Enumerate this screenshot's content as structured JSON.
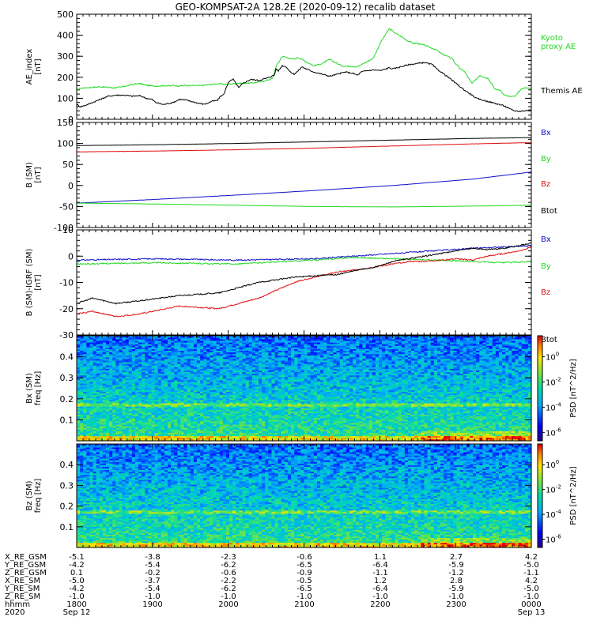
{
  "title": "GEO-KOMPSAT-2A 128.2E (2020-09-12) recalib dataset",
  "time_ticks": [
    "1800",
    "1900",
    "2000",
    "2100",
    "2200",
    "2300",
    "0000"
  ],
  "colors": {
    "black": "#000000",
    "green": "#22d822",
    "blue": "#1010c8",
    "red": "#e01010"
  },
  "chart_data": [
    {
      "type": "line",
      "ylabel": [
        "AE_index",
        "[nT]"
      ],
      "ylim": [
        0,
        500
      ],
      "yticks": [
        "0",
        "100",
        "200",
        "300",
        "400",
        "500"
      ],
      "series": [
        {
          "name": "Kyoto proxy AE",
          "color": "green",
          "x": [
            0,
            5,
            10,
            20,
            30,
            45,
            55,
            70,
            78,
            82,
            88,
            100,
            110,
            115,
            118,
            122,
            125,
            128,
            130,
            135,
            138,
            140,
            145,
            155,
            160,
            170,
            178,
            182,
            186,
            192,
            200,
            205,
            210,
            220,
            225,
            235,
            240,
            248,
            252,
            260,
            275,
            280,
            292,
            300,
            310,
            320,
            335,
            355,
            375,
            385,
            395,
            398,
            402,
            410,
            418,
            425,
            432,
            440,
            445,
            455,
            462,
            470,
            475,
            478,
            485,
            490,
            500,
            505,
            510,
            515,
            520,
            525,
            528,
            530,
            535,
            540,
            545,
            550,
            555,
            560,
            565,
            575
          ],
          "y": [
            140,
            148,
            150,
            152,
            155,
            150,
            152,
            165,
            170,
            168,
            162,
            158,
            160,
            160,
            158,
            162,
            160,
            158,
            160,
            160,
            162,
            160,
            160,
            160,
            162,
            165,
            170,
            168,
            166,
            168,
            170,
            172,
            170,
            172,
            175,
            180,
            185,
            195,
            250,
            300,
            285,
            295,
            270,
            255,
            265,
            285,
            255,
            250,
            290,
            370,
            430,
            425,
            412,
            395,
            375,
            362,
            360,
            352,
            345,
            330,
            310,
            298,
            290,
            270,
            240,
            230,
            170,
            190,
            210,
            200,
            196,
            170,
            150,
            140,
            140,
            120,
            110,
            108,
            110,
            135,
            150,
            148
          ]
        },
        {
          "name": "Themis AE",
          "color": "black",
          "x": [
            0,
            5,
            10,
            20,
            30,
            40,
            50,
            60,
            70,
            80,
            88,
            95,
            100,
            110,
            115,
            120,
            125,
            130,
            140,
            150,
            160,
            165,
            170,
            178,
            182,
            186,
            192,
            198,
            205,
            210,
            215,
            220,
            230,
            240,
            250,
            252,
            255,
            260,
            265,
            270,
            275,
            280,
            285,
            290,
            300,
            310,
            320,
            330,
            340,
            350,
            355,
            360,
            365,
            375,
            385,
            395,
            400,
            410,
            420,
            430,
            440,
            450,
            455,
            460,
            470,
            480,
            490,
            500,
            505,
            510,
            515,
            520,
            525,
            530,
            535,
            540,
            545,
            550,
            555,
            560,
            565,
            575
          ],
          "y": [
            70,
            60,
            65,
            80,
            95,
            110,
            115,
            115,
            110,
            112,
            100,
            95,
            80,
            70,
            75,
            78,
            85,
            95,
            90,
            80,
            72,
            75,
            85,
            90,
            110,
            118,
            178,
            190,
            150,
            170,
            180,
            190,
            185,
            195,
            210,
            240,
            230,
            255,
            250,
            225,
            215,
            230,
            250,
            240,
            225,
            215,
            205,
            215,
            225,
            218,
            210,
            225,
            230,
            235,
            232,
            245,
            240,
            250,
            260,
            265,
            270,
            260,
            240,
            228,
            200,
            170,
            140,
            115,
            100,
            95,
            90,
            85,
            80,
            75,
            70,
            65,
            55,
            45,
            40,
            38,
            40,
            45
          ]
        }
      ]
    },
    {
      "type": "line",
      "ylabel": [
        "B (SM)",
        "[nT]"
      ],
      "ylim": [
        -100,
        150
      ],
      "yticks": [
        "-100",
        "-50",
        "0",
        "50",
        "100",
        "150"
      ],
      "series": [
        {
          "name": "Btot",
          "color": "black",
          "x": [
            0,
            100,
            200,
            300,
            400,
            500,
            575
          ],
          "y": [
            95,
            97,
            100,
            104,
            108,
            112,
            114
          ]
        },
        {
          "name": "Bz",
          "color": "red",
          "x": [
            0,
            100,
            200,
            300,
            400,
            500,
            575
          ],
          "y": [
            80,
            82,
            85,
            89,
            94,
            99,
            102
          ]
        },
        {
          "name": "Bx",
          "color": "blue",
          "x": [
            0,
            100,
            200,
            300,
            400,
            500,
            575
          ],
          "y": [
            -42,
            -33,
            -23,
            -12,
            0,
            15,
            32
          ]
        },
        {
          "name": "By",
          "color": "green",
          "x": [
            0,
            100,
            200,
            300,
            400,
            500,
            575
          ],
          "y": [
            -42,
            -44,
            -47,
            -50,
            -51,
            -49,
            -47
          ]
        }
      ]
    },
    {
      "type": "line",
      "ylabel": [
        "B (SM)-IGRF (SM)",
        "[nT]"
      ],
      "ylim": [
        -30,
        10
      ],
      "yticks": [
        "-30",
        "-20",
        "-10",
        "0",
        "10"
      ],
      "series": [
        {
          "name": "Bx",
          "color": "blue",
          "x": [
            0,
            100,
            200,
            300,
            350,
            400,
            450,
            500,
            540,
            575
          ],
          "y": [
            -1.5,
            -1,
            -1.5,
            -1,
            0,
            1,
            2,
            3,
            3.5,
            4
          ]
        },
        {
          "name": "By",
          "color": "green",
          "x": [
            0,
            100,
            200,
            300,
            350,
            400,
            450,
            500,
            540,
            575
          ],
          "y": [
            -3,
            -2.5,
            -3,
            -1.5,
            -0.5,
            -1,
            -1.5,
            -2,
            -2.5,
            -2
          ]
        },
        {
          "name": "Bz",
          "color": "red",
          "x": [
            0,
            20,
            50,
            80,
            130,
            180,
            230,
            275,
            300,
            330,
            360,
            380,
            400,
            420,
            440,
            460,
            480,
            500,
            520,
            540,
            560,
            575
          ],
          "y": [
            -22,
            -21,
            -23,
            -22,
            -19,
            -20,
            -16,
            -10,
            -8,
            -6,
            -5,
            -4,
            -3,
            -2,
            -2,
            -1.5,
            -1,
            -1.5,
            0,
            1,
            2,
            3.5
          ]
        },
        {
          "name": "Btot",
          "color": "black",
          "x": [
            0,
            20,
            50,
            80,
            130,
            180,
            230,
            275,
            300,
            330,
            360,
            380,
            400,
            420,
            440,
            460,
            480,
            500,
            520,
            540,
            560,
            575
          ],
          "y": [
            -18,
            -16,
            -18,
            -17,
            -15,
            -14,
            -10,
            -8,
            -7.5,
            -7,
            -5,
            -4,
            -2,
            -1,
            0,
            1,
            2,
            3,
            2.5,
            3,
            4,
            5
          ]
        }
      ]
    },
    {
      "type": "heatmap",
      "ylabel": [
        "Bx (SM)",
        "freq [Hz]"
      ],
      "ylim": [
        0,
        0.5
      ],
      "yticks": [
        "0.1",
        "0.2",
        "0.3",
        "0.4"
      ],
      "colorbar_label": "PSD [nT^2/Hz]",
      "colorbar_ticks": [
        "10^0",
        "10^-2",
        "10^-4",
        "10^-6"
      ],
      "band_hz": 0.17
    },
    {
      "type": "heatmap",
      "ylabel": [
        "Bz (SM)",
        "freq [Hz]"
      ],
      "ylim": [
        0,
        0.5
      ],
      "yticks": [
        "0.1",
        "0.2",
        "0.3",
        "0.4"
      ],
      "colorbar_label": "PSD [nT^2/Hz]",
      "colorbar_ticks": [
        "10^0",
        "10^-2",
        "10^-4",
        "10^-6"
      ],
      "band_hz": 0.17
    }
  ],
  "ephemeris": {
    "labels": [
      "X_RE_GSM",
      "Y_RE_GSM",
      "Z_RE_GSM",
      "X_RE_SM",
      "Y_RE_SM",
      "Z_RE_SM",
      "hhmm",
      "2020"
    ],
    "columns": [
      [
        "-5.1",
        "-4.2",
        "0.1",
        "-5.0",
        "-4.2",
        "-1.0",
        "1800",
        "Sep 12"
      ],
      [
        "-3.8",
        "-5.4",
        "-0.2",
        "-3.7",
        "-5.4",
        "-1.0",
        "1900",
        ""
      ],
      [
        "-2.3",
        "-6.2",
        "-0.6",
        "-2.2",
        "-6.2",
        "-1.0",
        "2000",
        ""
      ],
      [
        "-0.6",
        "-6.5",
        "-0.9",
        "-0.5",
        "-6.5",
        "-1.0",
        "2100",
        ""
      ],
      [
        "1.1",
        "-6.4",
        "-1.1",
        "1.2",
        "-6.4",
        "-1.0",
        "2200",
        ""
      ],
      [
        "2.7",
        "-5.9",
        "-1.2",
        "2.8",
        "-5.9",
        "-1.0",
        "2300",
        ""
      ],
      [
        "4.2",
        "-5.0",
        "-1.1",
        "4.2",
        "-5.0",
        "-1.0",
        "0000",
        "Sep 13"
      ]
    ]
  }
}
